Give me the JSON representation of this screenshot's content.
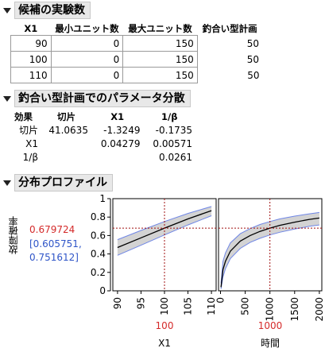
{
  "sections": {
    "design": {
      "title": "候補の実験数",
      "columns": [
        "X1",
        "最小ユニット数",
        "最大ユニット数",
        "釣合い型計画"
      ],
      "rows": [
        {
          "x1": "90",
          "min": "0",
          "max": "150",
          "balanced": "50"
        },
        {
          "x1": "100",
          "min": "0",
          "max": "150",
          "balanced": "50"
        },
        {
          "x1": "110",
          "min": "0",
          "max": "150",
          "balanced": "50"
        }
      ]
    },
    "variance": {
      "title": "釣合い型計画でのパラメータ分散",
      "columns": [
        "効果",
        "切片",
        "X1",
        "1/β"
      ],
      "rows": [
        {
          "effect": "切片",
          "c1": "41.0635",
          "c2": "-1.3249",
          "c3": "-0.1735"
        },
        {
          "effect": "X1",
          "c1": "",
          "c2": "0.04279",
          "c3": "0.00571"
        },
        {
          "effect": "1/β",
          "c1": "",
          "c2": "",
          "c3": "0.0261"
        }
      ]
    },
    "profiler": {
      "title": "分布プロファイル",
      "y_label": "故障確率",
      "prediction": "0.679724",
      "ci_line1": "[0.605751,",
      "ci_line2": "0.751612]",
      "y_ticks": [
        "0",
        "0.2",
        "0.4",
        "0.6",
        "0.8",
        "1"
      ],
      "panels": [
        {
          "x_label": "X1",
          "current": "100",
          "x_ticks": [
            "90",
            "95",
            "100",
            "105",
            "110"
          ]
        },
        {
          "x_label": "時間",
          "current": "1000",
          "x_ticks": [
            "0",
            "500",
            "1000",
            "1500",
            "2000"
          ]
        }
      ]
    }
  },
  "colors": {
    "prediction_red": "#d42a2a",
    "ci_blue": "#2f55c8",
    "band_fill": "#d3d3d3",
    "band_edge": "#6f86e6",
    "crosshair": "#a01010"
  },
  "chart_data": [
    {
      "type": "line",
      "x": [
        90,
        95,
        100,
        105,
        110
      ],
      "series": [
        {
          "values": [
            0.47,
            0.575,
            0.68,
            0.78,
            0.87
          ]
        },
        {
          "values": [
            0.385,
            0.495,
            0.606,
            0.715,
            0.815
          ]
        },
        {
          "values": [
            0.555,
            0.655,
            0.752,
            0.84,
            0.915
          ]
        }
      ],
      "xlabel": "X1",
      "ylabel": "故障確率",
      "xlim": [
        89,
        111
      ],
      "ylim": [
        0,
        1
      ],
      "current_x": 100,
      "current_y": 0.679724
    },
    {
      "type": "line",
      "x": [
        10,
        50,
        100,
        200,
        400,
        600,
        800,
        1000,
        1200,
        1500,
        1800,
        2000
      ],
      "series": [
        {
          "values": [
            0.04,
            0.23,
            0.32,
            0.43,
            0.54,
            0.6,
            0.645,
            0.68,
            0.71,
            0.745,
            0.775,
            0.79
          ]
        },
        {
          "values": [
            0.02,
            0.15,
            0.24,
            0.35,
            0.46,
            0.525,
            0.57,
            0.606,
            0.635,
            0.67,
            0.7,
            0.715
          ]
        },
        {
          "values": [
            0.08,
            0.32,
            0.41,
            0.52,
            0.62,
            0.675,
            0.72,
            0.752,
            0.78,
            0.81,
            0.835,
            0.85
          ]
        }
      ],
      "xlabel": "時間",
      "ylabel": "故障確率",
      "xlim": [
        -40,
        2050
      ],
      "ylim": [
        0,
        1
      ],
      "current_x": 1000,
      "current_y": 0.679724
    }
  ]
}
